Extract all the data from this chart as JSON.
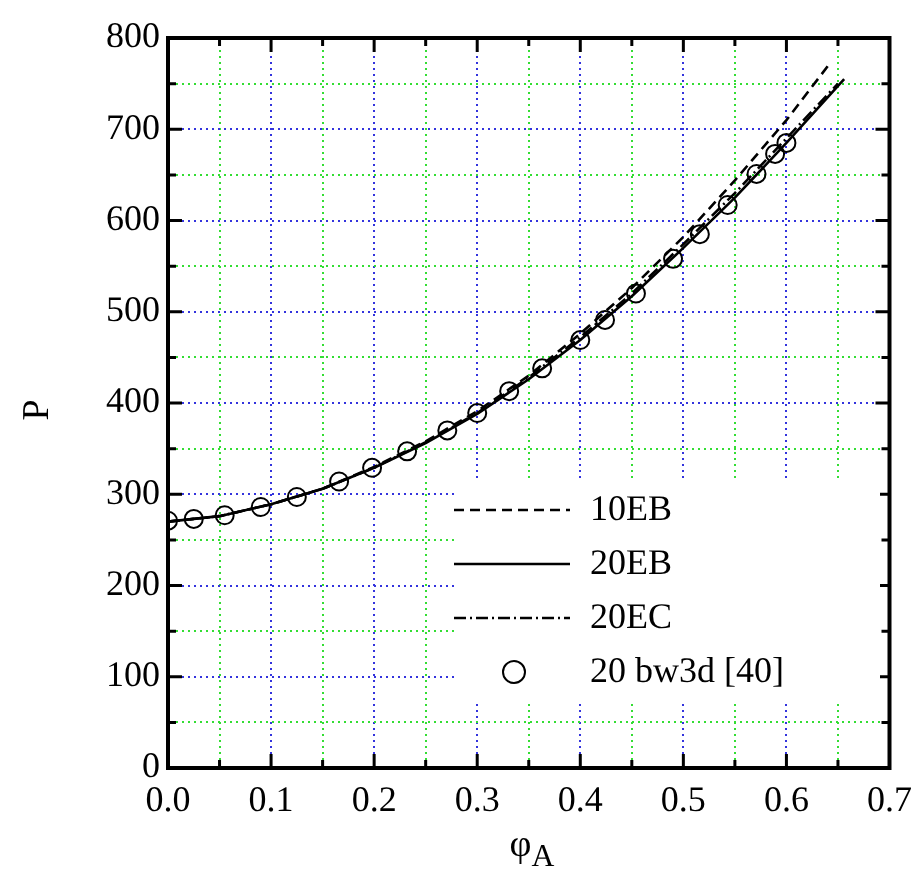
{
  "chart_data": {
    "type": "line",
    "xlabel": "φ$_{A}$",
    "ylabel": "P",
    "xlim": [
      0,
      0.7
    ],
    "ylim": [
      0,
      800
    ],
    "xticks": [
      {
        "value": 0,
        "label": "0.0"
      },
      {
        "value": 0.05,
        "label": null
      },
      {
        "value": 0.1,
        "label": "0.1"
      },
      {
        "value": 0.15,
        "label": null
      },
      {
        "value": 0.2,
        "label": "0.2"
      },
      {
        "value": 0.25,
        "label": null
      },
      {
        "value": 0.3,
        "label": "0.3"
      },
      {
        "value": 0.35,
        "label": null
      },
      {
        "value": 0.4,
        "label": "0.4"
      },
      {
        "value": 0.45,
        "label": null
      },
      {
        "value": 0.5,
        "label": "0.5"
      },
      {
        "value": 0.55,
        "label": null
      },
      {
        "value": 0.6,
        "label": "0.6"
      },
      {
        "value": 0.65,
        "label": null
      },
      {
        "value": 0.7,
        "label": "0.7"
      }
    ],
    "yticks": [
      0,
      {
        "value": 50,
        "label": null
      },
      100,
      {
        "value": 150,
        "label": null
      },
      200,
      {
        "value": 250,
        "label": null
      },
      300,
      {
        "value": 350,
        "label": null
      },
      400,
      {
        "value": 450,
        "label": null
      },
      500,
      {
        "value": 550,
        "label": null
      },
      600,
      {
        "value": 650,
        "label": null
      },
      700,
      {
        "value": 750,
        "label": null
      },
      800
    ],
    "grid": true,
    "legend": "bottom right",
    "series": [
      {
        "name": "10EB",
        "line_style": "dashed",
        "color": "#000000",
        "x": [
          0,
          0.05,
          0.1,
          0.15,
          0.2,
          0.25,
          0.3,
          0.35,
          0.4,
          0.45,
          0.5,
          0.55,
          0.6,
          0.64
        ],
        "values": [
          270,
          276,
          289,
          306,
          330,
          358,
          391,
          430,
          476,
          526,
          582,
          644,
          710,
          769
        ]
      },
      {
        "name": "20EB",
        "line_style": "solid",
        "color": "#000000",
        "x": [
          0,
          0.05,
          0.1,
          0.15,
          0.2,
          0.25,
          0.3,
          0.35,
          0.4,
          0.45,
          0.5,
          0.55,
          0.6,
          0.656
        ],
        "values": [
          270,
          276,
          289,
          306,
          329,
          356,
          388,
          426,
          469,
          517,
          570,
          625,
          685,
          755
        ]
      },
      {
        "name": "20EC",
        "line_style": "dotted",
        "color": "#000000",
        "x": [
          0,
          0.05,
          0.1,
          0.15,
          0.2,
          0.25,
          0.3,
          0.35,
          0.4,
          0.45,
          0.5,
          0.55,
          0.6,
          0.65
        ],
        "values": [
          270,
          276,
          289,
          306,
          329,
          357,
          389,
          428,
          472,
          520,
          574,
          630,
          690,
          750
        ]
      },
      {
        "name": "20 bw3d [40]",
        "type": "scatter",
        "marker": "circle",
        "color": "#000000",
        "x": [
          0,
          0.025,
          0.055,
          0.09,
          0.125,
          0.166,
          0.198,
          0.232,
          0.271,
          0.3,
          0.331,
          0.363,
          0.4,
          0.424,
          0.454,
          0.49,
          0.516,
          0.543,
          0.571,
          0.589,
          0.6
        ],
        "values": [
          271,
          273,
          277,
          286,
          297,
          314,
          329,
          347,
          370,
          389,
          413,
          438,
          469,
          491,
          520,
          558,
          585,
          617,
          651,
          673,
          685
        ]
      }
    ]
  }
}
